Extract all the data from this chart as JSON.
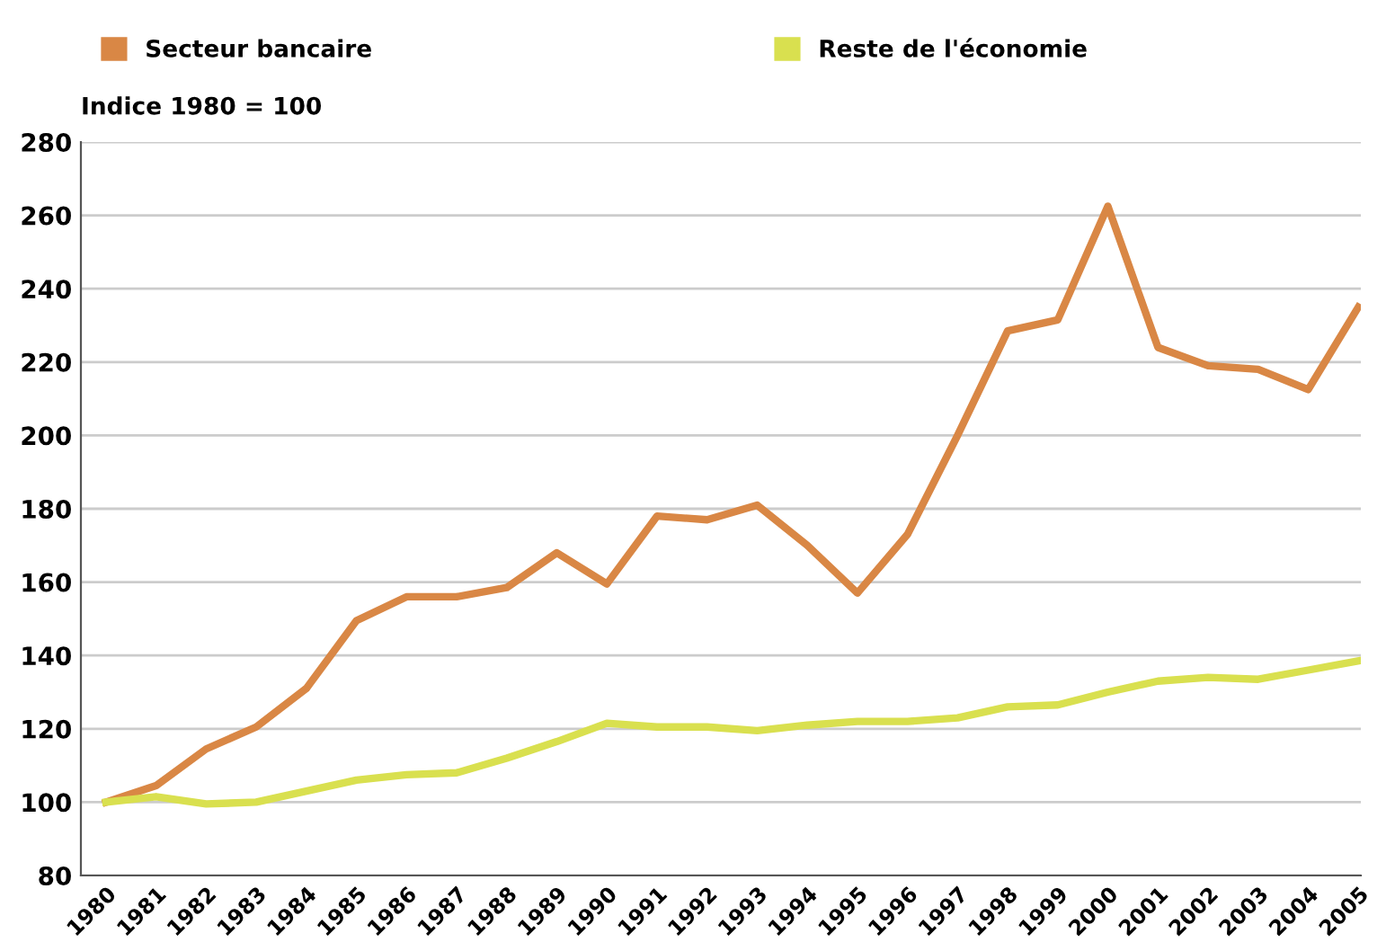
{
  "chart_data": {
    "type": "line",
    "ylabel": "Indice 1980 = 100",
    "categories": [
      "1980",
      "1981",
      "1982",
      "1983",
      "1984",
      "1985",
      "1986",
      "1987",
      "1988",
      "1989",
      "1990",
      "1991",
      "1992",
      "1993",
      "1994",
      "1995",
      "1996",
      "1997",
      "1998",
      "1999",
      "2000",
      "2001",
      "2002",
      "2003",
      "2004",
      "2005"
    ],
    "series": [
      {
        "name": "Secteur bancaire",
        "color": "#d98745",
        "values": [
          100,
          104.5,
          114.5,
          120.5,
          131,
          149.5,
          156,
          156,
          158.5,
          168,
          159.5,
          178,
          177,
          181,
          170,
          157,
          173,
          200,
          228.5,
          231.5,
          262.5,
          224,
          219,
          218,
          212.5,
          235
        ]
      },
      {
        "name": "Reste de l'économie",
        "color": "#d9e04f",
        "values": [
          100,
          101.5,
          99.5,
          100,
          103,
          106,
          107.5,
          108,
          112,
          116.5,
          121.5,
          120.5,
          120.5,
          119.5,
          121,
          122,
          122,
          123,
          126,
          126.5,
          130,
          133,
          134,
          133.5,
          136,
          138.5
        ]
      }
    ],
    "ylim": [
      80,
      280
    ],
    "yticks": [
      80,
      100,
      120,
      140,
      160,
      180,
      200,
      220,
      240,
      260,
      280
    ],
    "grid": "y",
    "legend": "top left",
    "marker": "none",
    "line_style": "solid"
  }
}
